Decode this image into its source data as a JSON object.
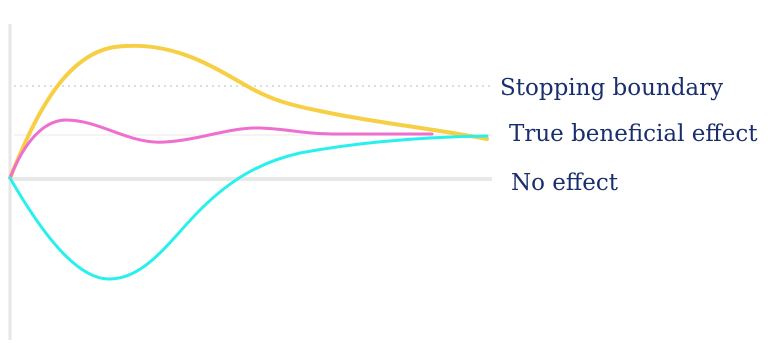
{
  "labels": {
    "stopping_boundary": "Stopping boundary",
    "true_beneficial_effect": "True beneficial effect",
    "no_effect": "No effect"
  },
  "colors": {
    "label_text": "#1a2e6e",
    "axis": "#e6e6e6",
    "stopping_boundary_line": "#dddddd",
    "true_effect_line": "#f4f4f4",
    "no_effect_line": "#e8e8e8",
    "upper_path": "#f7cf45",
    "middle_path": "#ee6fcf",
    "lower_path": "#28f0ee"
  }
}
